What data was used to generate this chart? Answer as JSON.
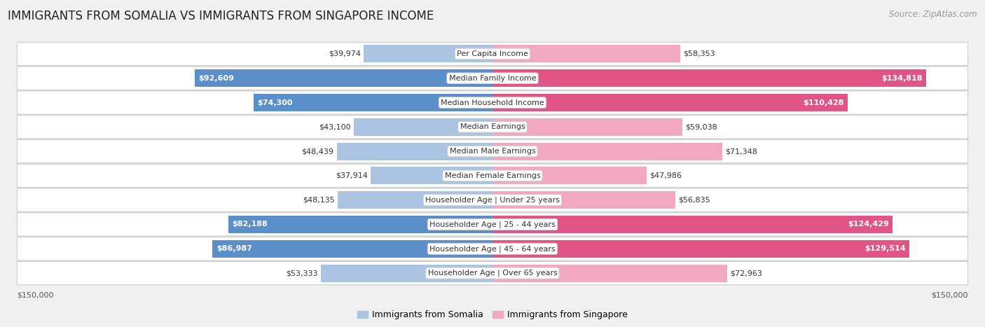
{
  "title": "IMMIGRANTS FROM SOMALIA VS IMMIGRANTS FROM SINGAPORE INCOME",
  "source": "Source: ZipAtlas.com",
  "categories": [
    "Per Capita Income",
    "Median Family Income",
    "Median Household Income",
    "Median Earnings",
    "Median Male Earnings",
    "Median Female Earnings",
    "Householder Age | Under 25 years",
    "Householder Age | 25 - 44 years",
    "Householder Age | 45 - 64 years",
    "Householder Age | Over 65 years"
  ],
  "somalia_values": [
    39974,
    92609,
    74300,
    43100,
    48439,
    37914,
    48135,
    82188,
    86987,
    53333
  ],
  "singapore_values": [
    58353,
    134818,
    110428,
    59038,
    71348,
    47986,
    56835,
    124429,
    129514,
    72963
  ],
  "somalia_labels": [
    "$39,974",
    "$92,609",
    "$74,300",
    "$43,100",
    "$48,439",
    "$37,914",
    "$48,135",
    "$82,188",
    "$86,987",
    "$53,333"
  ],
  "singapore_labels": [
    "$58,353",
    "$134,818",
    "$110,428",
    "$59,038",
    "$71,348",
    "$47,986",
    "$56,835",
    "$124,429",
    "$129,514",
    "$72,963"
  ],
  "somalia_color_light": "#aac4e2",
  "somalia_color_dark": "#5b8fc9",
  "singapore_color_light": "#f2a8c0",
  "singapore_color_dark": "#e05585",
  "max_value": 150000,
  "background_color": "#f0f0f0",
  "legend_somalia": "Immigrants from Somalia",
  "legend_singapore": "Immigrants from Singapore",
  "title_fontsize": 12,
  "source_fontsize": 8.5,
  "bar_label_fontsize": 8,
  "category_fontsize": 8,
  "axis_label_fontsize": 8,
  "large_threshold_somalia": 60000,
  "large_threshold_singapore": 90000
}
